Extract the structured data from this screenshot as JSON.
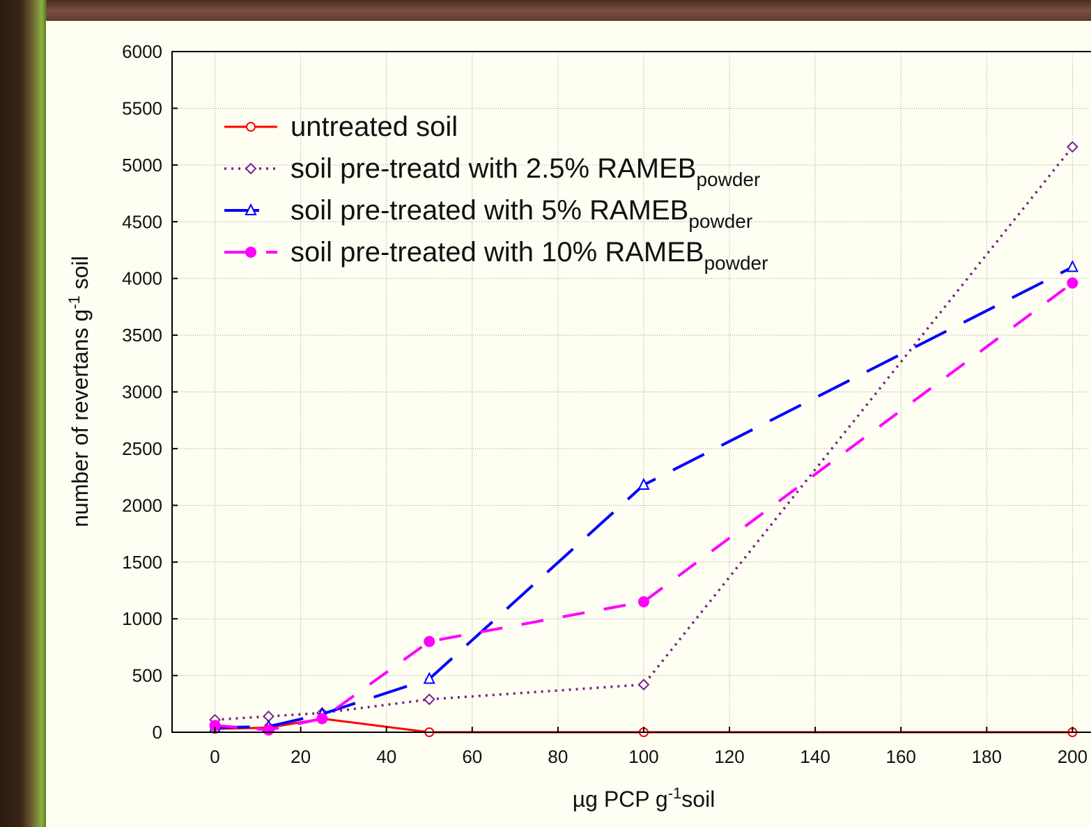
{
  "chart_data": {
    "type": "line",
    "xlabel": {
      "text": "µg PCP g",
      "sup": "-1",
      "after": "soil"
    },
    "ylabel": {
      "text": "number of revertans g",
      "sup": "-1",
      "after": " soil"
    },
    "x": [
      0,
      12.5,
      25,
      50,
      100,
      200
    ],
    "xlim": [
      -10,
      204
    ],
    "xticks": [
      0,
      20,
      40,
      60,
      80,
      100,
      120,
      140,
      160,
      180,
      200
    ],
    "ylim": [
      0,
      6000
    ],
    "yticks": [
      0,
      500,
      1000,
      1500,
      2000,
      2500,
      3000,
      3500,
      4000,
      4500,
      5000,
      5500,
      6000
    ],
    "grid": true,
    "legend": "upper left",
    "series": [
      {
        "name": "untreated soil",
        "color": "#ff0000",
        "marker": "circle",
        "values": [
          30,
          40,
          120,
          0,
          0,
          0
        ]
      },
      {
        "name": "soil pre-treatd with 2.5% RAMEB",
        "sub": "powder",
        "color": "#7a1f8a",
        "marker": "diamond",
        "values": [
          110,
          140,
          170,
          290,
          420,
          5160
        ]
      },
      {
        "name": "soil pre-treated with 5% RAMEB",
        "sub": "powder",
        "color": "#0000ff",
        "marker": "triangle",
        "values": [
          40,
          50,
          160,
          470,
          2180,
          4100
        ]
      },
      {
        "name": "soil pre-treated with 10% RAMEB",
        "sub": "powder",
        "color": "#ff00ff",
        "marker": "filled-circle",
        "values": [
          60,
          20,
          120,
          800,
          1150,
          3960
        ]
      }
    ]
  }
}
